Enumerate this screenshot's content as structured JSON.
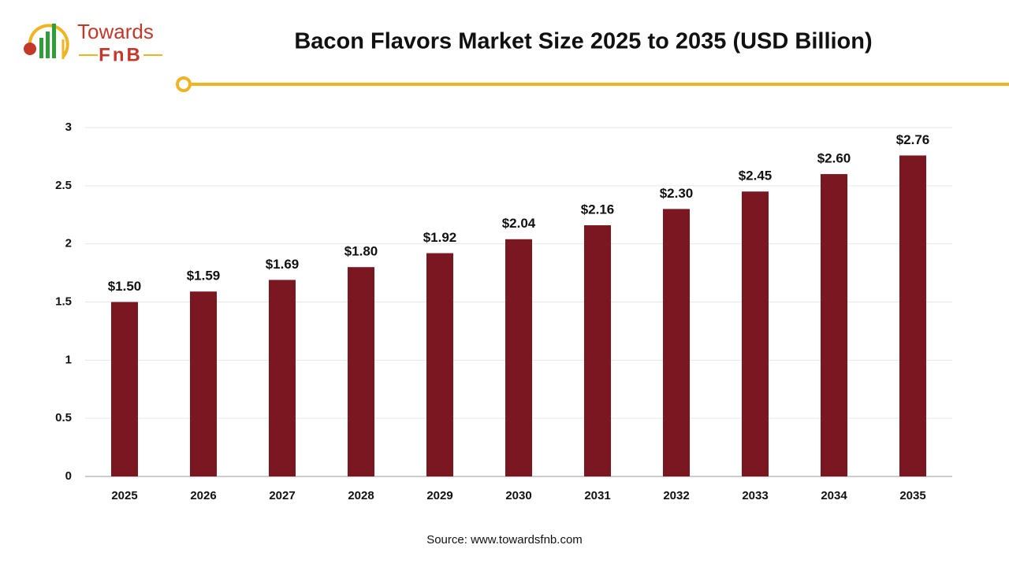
{
  "brand": [
    "Towards",
    "FnB"
  ],
  "chart_data": {
    "type": "bar",
    "title": "Bacon Flavors Market Size 2025 to 2035 (USD Billion)",
    "categories": [
      "2025",
      "2026",
      "2027",
      "2028",
      "2029",
      "2030",
      "2031",
      "2032",
      "2033",
      "2034",
      "2035"
    ],
    "values": [
      1.5,
      1.59,
      1.69,
      1.8,
      1.92,
      2.04,
      2.16,
      2.3,
      2.45,
      2.6,
      2.76
    ],
    "value_labels": [
      "$1.50",
      "$1.59",
      "$1.69",
      "$1.80",
      "$1.92",
      "$2.04",
      "$2.16",
      "$2.30",
      "$2.45",
      "$2.60",
      "$2.76"
    ],
    "color": "#7b1720",
    "ylim": [
      0,
      3
    ],
    "yticks": [
      0,
      0.5,
      1,
      1.5,
      2,
      2.5,
      3
    ],
    "grid": true,
    "source": "Source: www.towardsfnb.com"
  }
}
